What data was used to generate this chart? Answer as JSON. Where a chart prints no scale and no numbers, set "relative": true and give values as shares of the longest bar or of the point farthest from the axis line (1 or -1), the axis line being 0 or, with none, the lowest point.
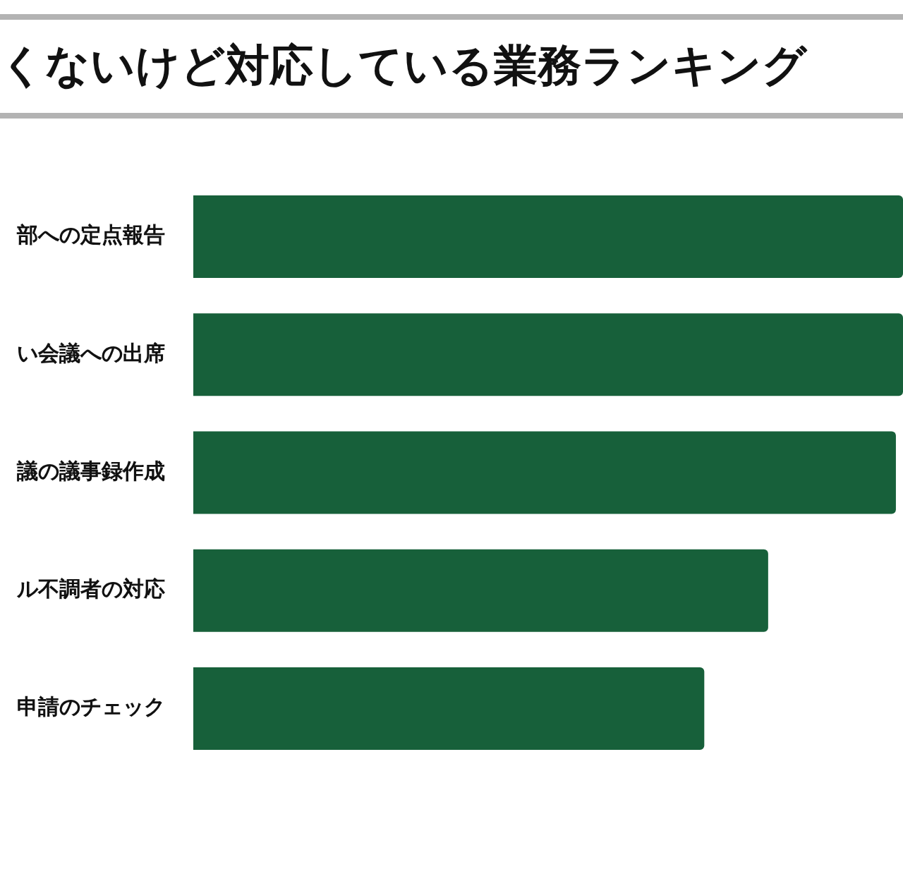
{
  "chart_data": {
    "type": "bar",
    "orientation": "horizontal",
    "relative": true,
    "title": "くないけど対応している業務ランキング",
    "categories": [
      "部への定点報告",
      "い会議への出席",
      "議の議事録作成",
      "ル不調者の対応",
      "申請のチェック"
    ],
    "values": [
      1,
      1,
      0.99,
      0.81,
      0.72
    ],
    "color": "#17603a"
  }
}
